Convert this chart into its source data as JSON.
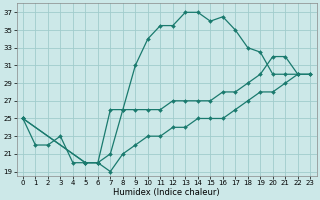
{
  "xlabel": "Humidex (Indice chaleur)",
  "ylabel": "",
  "xlim": [
    -0.5,
    23.5
  ],
  "ylim": [
    18.5,
    38
  ],
  "xticks": [
    0,
    1,
    2,
    3,
    4,
    5,
    6,
    7,
    8,
    9,
    10,
    11,
    12,
    13,
    14,
    15,
    16,
    17,
    18,
    19,
    20,
    21,
    22,
    23
  ],
  "yticks": [
    19,
    21,
    23,
    25,
    27,
    29,
    31,
    33,
    35,
    37
  ],
  "bg_color": "#cce8e8",
  "grid_color": "#a0cccc",
  "line_color": "#1a7a6e",
  "line_width": 0.9,
  "marker": "D",
  "marker_size": 2.0,
  "curves": [
    {
      "x": [
        0,
        1,
        2,
        3,
        4,
        5,
        6,
        7,
        8,
        9,
        10,
        11,
        12,
        13,
        14,
        15,
        16,
        17,
        18,
        19,
        20,
        21,
        22
      ],
      "y": [
        25,
        22,
        22,
        23,
        20,
        20,
        20,
        21,
        26,
        31,
        34,
        35.5,
        35.5,
        37,
        37,
        36,
        36.5,
        35,
        33,
        32.5,
        30,
        30,
        30
      ]
    },
    {
      "x": [
        0,
        5,
        6,
        7,
        8,
        9,
        10,
        11,
        12,
        13,
        14,
        15,
        16,
        17,
        18,
        19,
        20,
        21,
        22,
        23
      ],
      "y": [
        25,
        20,
        20,
        26,
        26,
        26,
        26,
        26,
        27,
        27,
        27,
        27,
        28,
        28,
        29,
        30,
        32,
        32,
        30,
        30
      ]
    },
    {
      "x": [
        0,
        5,
        6,
        7,
        8,
        9,
        10,
        11,
        12,
        13,
        14,
        15,
        16,
        17,
        18,
        19,
        20,
        21,
        22,
        23
      ],
      "y": [
        25,
        20,
        20,
        19,
        21,
        22,
        23,
        23,
        24,
        24,
        25,
        25,
        25,
        26,
        27,
        28,
        28,
        29,
        30,
        30
      ]
    }
  ]
}
